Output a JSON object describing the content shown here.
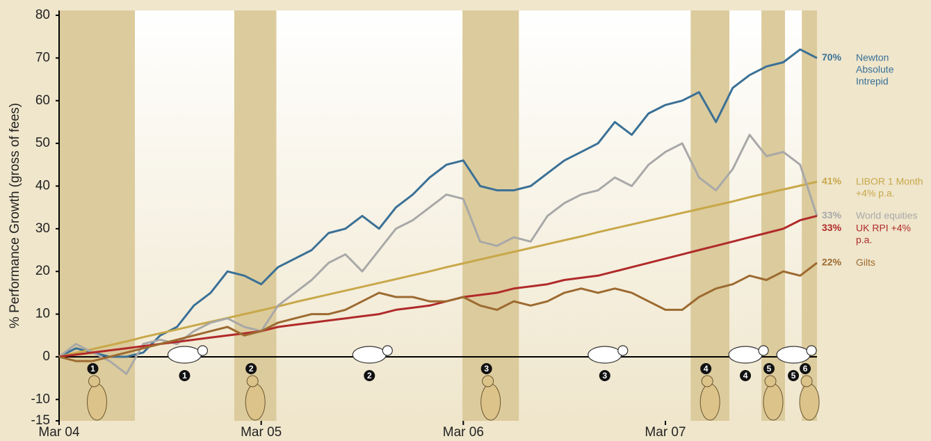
{
  "chart_data": {
    "type": "line",
    "y_label": "% Performance Growth (gross of fees)",
    "xlim": [
      0,
      45
    ],
    "xticks": [
      {
        "value": 0,
        "label": "Mar 04"
      },
      {
        "value": 12,
        "label": "Mar 05"
      },
      {
        "value": 24,
        "label": "Mar 06"
      },
      {
        "value": 36,
        "label": "Mar 07"
      }
    ],
    "ylim": [
      -15,
      80
    ],
    "yticks": [
      -15,
      -10,
      0,
      10,
      20,
      30,
      40,
      50,
      60,
      70,
      80
    ],
    "bear_periods": [
      [
        0,
        4.5
      ],
      [
        10.4,
        12.9
      ],
      [
        23.95,
        27.3
      ],
      [
        37.5,
        39.8
      ],
      [
        41.7,
        43.1
      ],
      [
        44.1,
        45
      ]
    ],
    "bear_labels": [
      "1",
      "2",
      "3",
      "4",
      "5",
      "6"
    ],
    "bull_labels": [
      "1",
      "2",
      "3",
      "4",
      "5"
    ],
    "x": [
      0,
      1,
      2,
      3,
      4,
      5,
      6,
      7,
      8,
      9,
      10,
      11,
      12,
      13,
      14,
      15,
      16,
      17,
      18,
      19,
      20,
      21,
      22,
      23,
      24,
      25,
      26,
      27,
      28,
      29,
      30,
      31,
      32,
      33,
      34,
      35,
      36,
      37,
      38,
      39,
      40,
      41,
      42,
      43,
      44,
      45
    ],
    "series": [
      {
        "name": "Newton Absolute Intrepid",
        "end_label": "70%",
        "color": "#3a7096",
        "values": [
          0,
          2,
          1,
          0,
          0,
          1,
          5,
          7,
          12,
          15,
          20,
          19,
          17,
          21,
          23,
          25,
          29,
          30,
          33,
          30,
          35,
          38,
          42,
          45,
          46,
          40,
          39,
          39,
          40,
          43,
          46,
          48,
          50,
          55,
          52,
          57,
          59,
          60,
          62,
          55,
          63,
          66,
          68,
          69,
          72,
          70
        ]
      },
      {
        "name": "LIBOR 1 Month +4% p.a.",
        "end_label": "41%",
        "color": "#c8a84a",
        "values": [
          0,
          0.9,
          1.8,
          2.7,
          3.6,
          4.6,
          5.5,
          6.4,
          7.3,
          8.2,
          9.1,
          10,
          10.9,
          11.8,
          12.8,
          13.7,
          14.6,
          15.5,
          16.4,
          17.3,
          18.2,
          19.1,
          20,
          21,
          21.9,
          22.8,
          23.7,
          24.6,
          25.5,
          26.4,
          27.3,
          28.2,
          29.2,
          30.1,
          31,
          31.9,
          32.8,
          33.7,
          34.6,
          35.5,
          36.4,
          37.4,
          38.3,
          39.2,
          40.1,
          41
        ]
      },
      {
        "name": "World equities",
        "end_label": "33%",
        "color": "#a8a8a8",
        "values": [
          0,
          3,
          1,
          -1,
          -4,
          3,
          4,
          3,
          6,
          8,
          9,
          7,
          6,
          12,
          15,
          18,
          22,
          24,
          20,
          25,
          30,
          32,
          35,
          38,
          37,
          27,
          26,
          28,
          27,
          33,
          36,
          38,
          39,
          42,
          40,
          45,
          48,
          50,
          42,
          39,
          44,
          52,
          47,
          48,
          45,
          33
        ]
      },
      {
        "name": "UK RPI +4% p.a.",
        "end_label": "33%",
        "color": "#b02a2a",
        "values": [
          0,
          0.5,
          1,
          1.5,
          2,
          2.5,
          3,
          3.5,
          4,
          4.5,
          5,
          5.5,
          6,
          7,
          7.5,
          8,
          8.5,
          9,
          9.5,
          10,
          11,
          11.5,
          12,
          13,
          14,
          14.5,
          15,
          16,
          16.5,
          17,
          18,
          18.5,
          19,
          20,
          21,
          22,
          23,
          24,
          25,
          26,
          27,
          28,
          29,
          30,
          32,
          33
        ]
      },
      {
        "name": "Gilts",
        "end_label": "22%",
        "color": "#9c6a30",
        "values": [
          0,
          -1,
          -1,
          0,
          1,
          2,
          3,
          4,
          5,
          6,
          7,
          5,
          6,
          8,
          9,
          10,
          10,
          11,
          13,
          15,
          14,
          14,
          13,
          13,
          14,
          12,
          11,
          13,
          12,
          13,
          15,
          16,
          15,
          16,
          15,
          13,
          11,
          11,
          14,
          16,
          17,
          19,
          18,
          20,
          19,
          22
        ]
      }
    ]
  }
}
